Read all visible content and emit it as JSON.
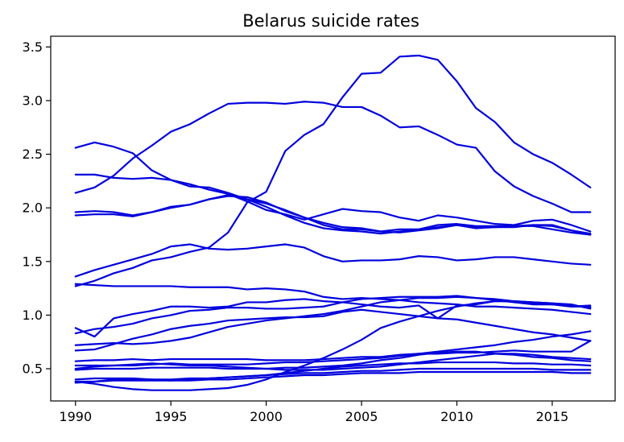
{
  "chart_data": {
    "type": "line",
    "title": "Belarus suicide rates",
    "xlabel": "",
    "ylabel": "",
    "xlim": [
      1988.7,
      2018.3
    ],
    "ylim": [
      0.2,
      3.6
    ],
    "xticks": [
      1990,
      1995,
      2000,
      2005,
      2010,
      2015
    ],
    "xtick_labels": [
      "1990",
      "1995",
      "2000",
      "2005",
      "2010",
      "2015"
    ],
    "yticks": [
      0.5,
      1.0,
      1.5,
      2.0,
      2.5,
      3.0,
      3.5
    ],
    "ytick_labels": [
      "0.5",
      "1.0",
      "1.5",
      "2.0",
      "2.5",
      "3.0",
      "3.5"
    ],
    "grid": false,
    "legend": "none",
    "line_color": "#0000dd",
    "x": [
      1990,
      1991,
      1992,
      1993,
      1994,
      1995,
      1996,
      1997,
      1998,
      1999,
      2000,
      2001,
      2002,
      2003,
      2004,
      2005,
      2006,
      2007,
      2008,
      2009,
      2010,
      2011,
      2012,
      2013,
      2014,
      2015,
      2016,
      2017
    ],
    "series": [
      {
        "values": [
          2.14,
          2.19,
          2.3,
          2.46,
          2.58,
          2.71,
          2.78,
          2.88,
          2.97,
          2.98,
          2.98,
          2.97,
          2.99,
          2.98,
          2.94,
          2.94,
          2.86,
          2.75,
          2.76,
          2.68,
          2.59,
          2.56,
          2.34,
          2.2,
          2.11,
          2.04,
          1.96,
          1.96
        ]
      },
      {
        "values": [
          2.56,
          2.61,
          2.57,
          2.51,
          2.35,
          2.26,
          2.2,
          2.19,
          2.14,
          2.08,
          2.01,
          1.93,
          1.86,
          1.81,
          1.79,
          1.78,
          1.76,
          1.78,
          1.8,
          1.82,
          1.84,
          1.81,
          1.82,
          1.82,
          1.84,
          1.83,
          1.79,
          1.76
        ]
      },
      {
        "values": [
          2.31,
          2.31,
          2.28,
          2.27,
          2.28,
          2.26,
          2.22,
          2.17,
          2.13,
          2.06,
          1.98,
          1.94,
          1.89,
          1.94,
          1.99,
          1.97,
          1.96,
          1.91,
          1.88,
          1.93,
          1.91,
          1.88,
          1.85,
          1.84,
          1.88,
          1.89,
          1.84,
          1.78
        ]
      },
      {
        "values": [
          1.96,
          1.97,
          1.96,
          1.93,
          1.96,
          2.0,
          2.03,
          2.08,
          2.11,
          2.1,
          2.05,
          1.97,
          1.91,
          1.86,
          1.82,
          1.81,
          1.78,
          1.77,
          1.79,
          1.81,
          1.84,
          1.82,
          1.82,
          1.83,
          1.83,
          1.8,
          1.77,
          1.75
        ]
      },
      {
        "values": [
          1.93,
          1.94,
          1.94,
          1.92,
          1.96,
          2.01,
          2.03,
          2.08,
          2.12,
          2.08,
          2.04,
          1.98,
          1.91,
          1.84,
          1.8,
          1.8,
          1.78,
          1.8,
          1.8,
          1.84,
          1.85,
          1.83,
          1.83,
          1.83,
          1.84,
          1.84,
          1.79,
          1.75
        ]
      },
      {
        "values": [
          1.27,
          1.32,
          1.39,
          1.44,
          1.51,
          1.54,
          1.59,
          1.63,
          1.77,
          2.05,
          2.15,
          2.53,
          2.68,
          2.78,
          3.03,
          3.25,
          3.26,
          3.41,
          3.42,
          3.38,
          3.18,
          2.93,
          2.8,
          2.61,
          2.5,
          2.42,
          2.31,
          2.19
        ]
      },
      {
        "values": [
          1.36,
          1.42,
          1.47,
          1.52,
          1.57,
          1.64,
          1.66,
          1.62,
          1.61,
          1.62,
          1.64,
          1.66,
          1.63,
          1.55,
          1.5,
          1.51,
          1.51,
          1.52,
          1.55,
          1.54,
          1.51,
          1.52,
          1.54,
          1.54,
          1.52,
          1.5,
          1.48,
          1.47
        ]
      },
      {
        "values": [
          1.29,
          1.28,
          1.27,
          1.27,
          1.27,
          1.27,
          1.26,
          1.26,
          1.26,
          1.24,
          1.25,
          1.24,
          1.22,
          1.17,
          1.15,
          1.16,
          1.15,
          1.14,
          1.12,
          1.11,
          1.1,
          1.08,
          1.08,
          1.07,
          1.06,
          1.05,
          1.03,
          1.01
        ]
      },
      {
        "values": [
          0.88,
          0.8,
          0.97,
          1.01,
          1.04,
          1.08,
          1.08,
          1.07,
          1.08,
          1.12,
          1.12,
          1.14,
          1.15,
          1.13,
          1.12,
          1.1,
          1.08,
          1.07,
          1.09,
          0.97,
          1.09,
          1.1,
          1.13,
          1.13,
          1.12,
          1.11,
          1.1,
          1.06
        ]
      },
      {
        "values": [
          0.83,
          0.87,
          0.89,
          0.92,
          0.97,
          1.0,
          1.04,
          1.05,
          1.07,
          1.07,
          1.06,
          1.06,
          1.07,
          1.08,
          1.12,
          1.15,
          1.16,
          1.17,
          1.17,
          1.17,
          1.18,
          1.16,
          1.15,
          1.13,
          1.11,
          1.1,
          1.08,
          1.08
        ]
      },
      {
        "values": [
          0.72,
          0.73,
          0.74,
          0.73,
          0.74,
          0.76,
          0.79,
          0.84,
          0.89,
          0.92,
          0.95,
          0.97,
          0.99,
          1.01,
          1.04,
          1.08,
          1.12,
          1.14,
          1.16,
          1.16,
          1.17,
          1.16,
          1.14,
          1.12,
          1.1,
          1.1,
          1.08,
          1.09
        ]
      },
      {
        "values": [
          0.67,
          0.68,
          0.73,
          0.78,
          0.82,
          0.87,
          0.9,
          0.92,
          0.95,
          0.96,
          0.97,
          0.98,
          0.98,
          0.99,
          1.03,
          1.05,
          1.03,
          1.01,
          0.99,
          0.97,
          0.96,
          0.93,
          0.9,
          0.87,
          0.84,
          0.82,
          0.79,
          0.76
        ]
      },
      {
        "values": [
          0.57,
          0.58,
          0.58,
          0.59,
          0.58,
          0.59,
          0.59,
          0.59,
          0.59,
          0.59,
          0.58,
          0.58,
          0.58,
          0.59,
          0.6,
          0.61,
          0.61,
          0.63,
          0.64,
          0.64,
          0.65,
          0.65,
          0.66,
          0.67,
          0.66,
          0.66,
          0.66,
          0.76
        ]
      },
      {
        "values": [
          0.53,
          0.53,
          0.53,
          0.53,
          0.54,
          0.55,
          0.54,
          0.54,
          0.54,
          0.54,
          0.55,
          0.56,
          0.56,
          0.57,
          0.58,
          0.59,
          0.6,
          0.62,
          0.64,
          0.66,
          0.68,
          0.7,
          0.72,
          0.75,
          0.77,
          0.8,
          0.82,
          0.85
        ]
      },
      {
        "values": [
          0.49,
          0.5,
          0.5,
          0.5,
          0.51,
          0.51,
          0.51,
          0.51,
          0.5,
          0.5,
          0.5,
          0.51,
          0.51,
          0.52,
          0.53,
          0.55,
          0.58,
          0.6,
          0.63,
          0.65,
          0.66,
          0.66,
          0.64,
          0.63,
          0.61,
          0.6,
          0.58,
          0.57
        ]
      },
      {
        "values": [
          0.4,
          0.41,
          0.41,
          0.41,
          0.4,
          0.4,
          0.41,
          0.41,
          0.42,
          0.43,
          0.44,
          0.46,
          0.48,
          0.5,
          0.52,
          0.53,
          0.54,
          0.55,
          0.55,
          0.56,
          0.56,
          0.56,
          0.56,
          0.55,
          0.55,
          0.54,
          0.54,
          0.53
        ]
      },
      {
        "values": [
          0.38,
          0.38,
          0.39,
          0.39,
          0.39,
          0.39,
          0.4,
          0.41,
          0.42,
          0.43,
          0.44,
          0.45,
          0.46,
          0.46,
          0.47,
          0.48,
          0.48,
          0.49,
          0.5,
          0.5,
          0.5,
          0.5,
          0.5,
          0.5,
          0.5,
          0.49,
          0.49,
          0.49
        ]
      },
      {
        "values": [
          0.38,
          0.36,
          0.33,
          0.31,
          0.3,
          0.3,
          0.3,
          0.31,
          0.32,
          0.35,
          0.4,
          0.47,
          0.53,
          0.6,
          0.68,
          0.77,
          0.88,
          0.94,
          0.99,
          1.04,
          1.08,
          1.11,
          1.13,
          1.13,
          1.12,
          1.11,
          1.09,
          1.07
        ]
      },
      {
        "values": [
          0.5,
          0.52,
          0.53,
          0.54,
          0.55,
          0.54,
          0.53,
          0.53,
          0.52,
          0.51,
          0.5,
          0.49,
          0.49,
          0.49,
          0.5,
          0.51,
          0.52,
          0.54,
          0.56,
          0.58,
          0.6,
          0.62,
          0.64,
          0.64,
          0.63,
          0.61,
          0.6,
          0.59
        ]
      },
      {
        "values": [
          0.37,
          0.38,
          0.4,
          0.4,
          0.4,
          0.39,
          0.39,
          0.4,
          0.4,
          0.41,
          0.42,
          0.43,
          0.44,
          0.44,
          0.45,
          0.46,
          0.46,
          0.46,
          0.47,
          0.47,
          0.47,
          0.47,
          0.47,
          0.47,
          0.47,
          0.47,
          0.46,
          0.46
        ]
      }
    ]
  }
}
